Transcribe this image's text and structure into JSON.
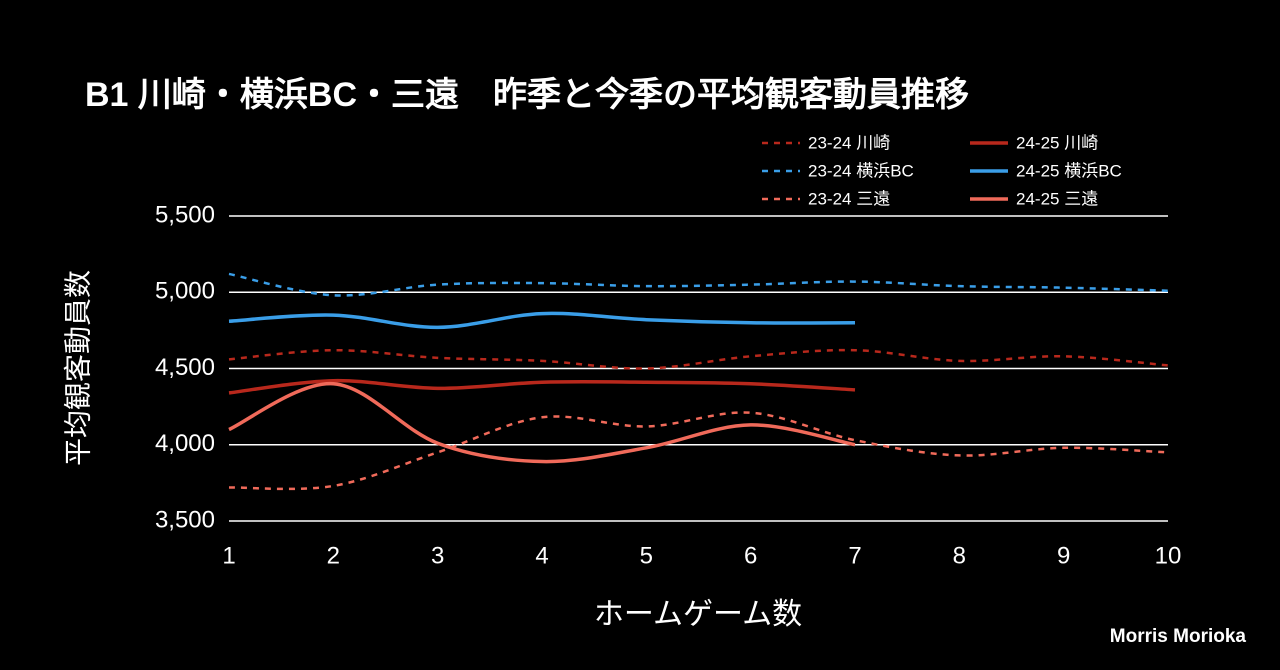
{
  "chart_data": {
    "type": "line",
    "title": "B1 川崎・横浜BC・三遠　昨季と今季の平均観客動員推移",
    "x_label": "ホームゲーム数",
    "y_label": "平均観客動員数",
    "annotation": "Morris Morioka",
    "x": [
      1,
      2,
      3,
      4,
      5,
      6,
      7,
      8,
      9,
      10
    ],
    "xlim": [
      1,
      10
    ],
    "xticks": [
      1,
      2,
      3,
      4,
      5,
      6,
      7,
      8,
      9,
      10
    ],
    "ylim": [
      3500,
      5500
    ],
    "yticks": [
      {
        "value": 3500,
        "label": "3,500"
      },
      {
        "value": 4000,
        "label": "4,000"
      },
      {
        "value": 4500,
        "label": "4,500"
      },
      {
        "value": 5000,
        "label": "5,000"
      },
      {
        "value": 5500,
        "label": "5,500"
      }
    ],
    "grid": true,
    "smooth": true,
    "series": [
      {
        "name": "23-24 川崎",
        "color": "#b8281c",
        "dashed": true,
        "values": [
          4560,
          4620,
          4570,
          4550,
          4500,
          4580,
          4620,
          4550,
          4580,
          4520
        ]
      },
      {
        "name": "23-24 横浜BC",
        "color": "#3a9ee8",
        "dashed": true,
        "values": [
          5120,
          4980,
          5050,
          5060,
          5040,
          5050,
          5070,
          5040,
          5030,
          5010
        ]
      },
      {
        "name": "23-24 三遠",
        "color": "#f06a5a",
        "dashed": true,
        "values": [
          3720,
          3730,
          3950,
          4180,
          4120,
          4210,
          4030,
          3930,
          3980,
          3950
        ]
      },
      {
        "name": "24-25 川崎",
        "color": "#b8281c",
        "dashed": false,
        "values": [
          4340,
          4420,
          4370,
          4410,
          4410,
          4400,
          4360,
          null,
          null,
          null
        ]
      },
      {
        "name": "24-25 横浜BC",
        "color": "#3a9ee8",
        "dashed": false,
        "values": [
          4810,
          4850,
          4770,
          4860,
          4820,
          4800,
          4800,
          null,
          null,
          null
        ]
      },
      {
        "name": "24-25 三遠",
        "color": "#f06a5a",
        "dashed": false,
        "values": [
          4100,
          4400,
          4010,
          3890,
          3980,
          4130,
          4000,
          null,
          null,
          null
        ]
      }
    ]
  }
}
